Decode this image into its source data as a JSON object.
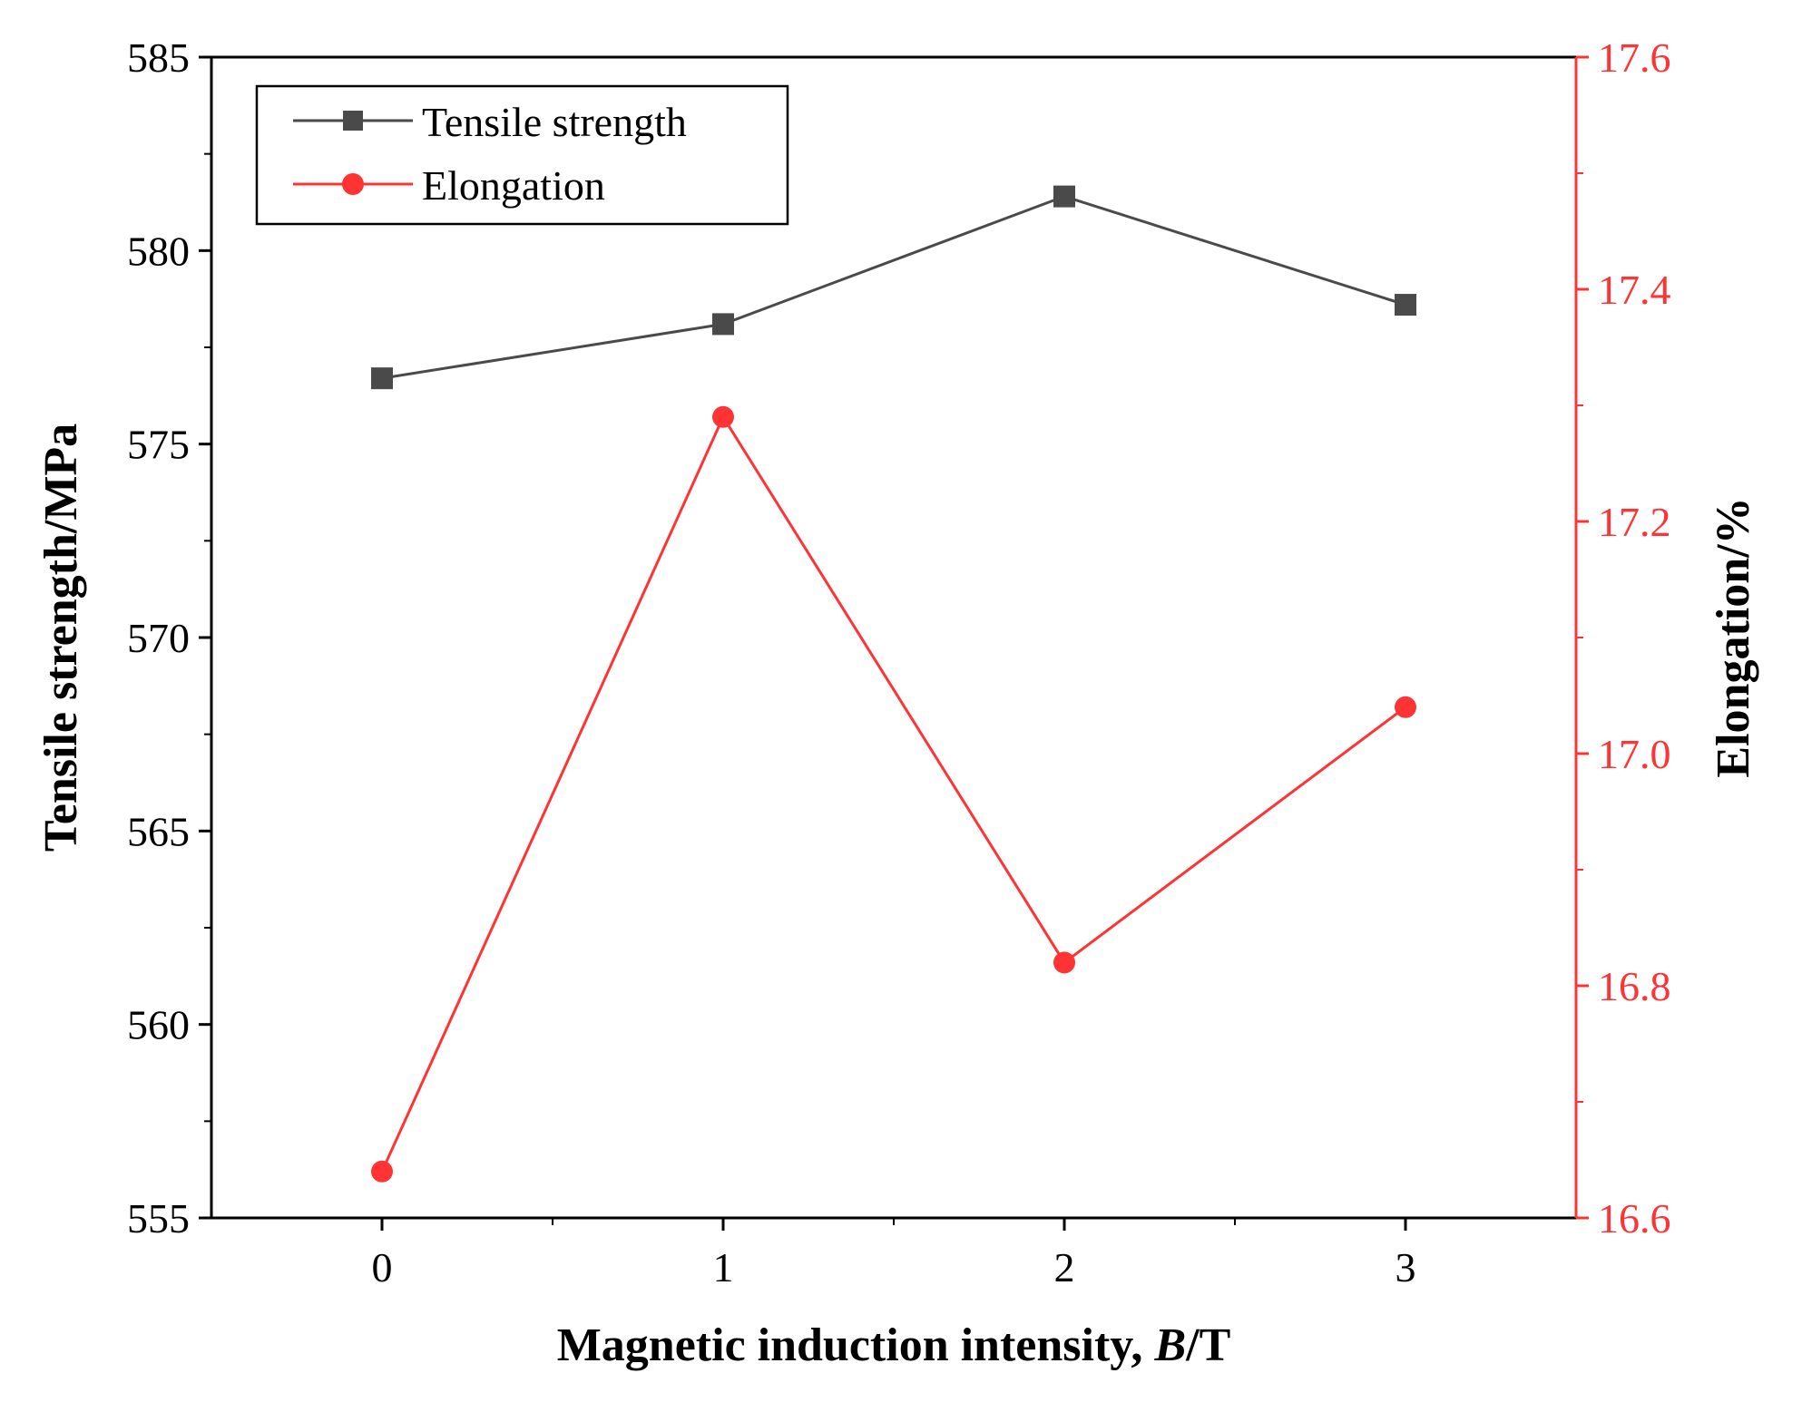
{
  "chart_data": {
    "type": "line",
    "title": "",
    "x": [
      0,
      1,
      2,
      3
    ],
    "x_ticks": [
      "0",
      "1",
      "2",
      "3"
    ],
    "xlim": [
      -0.5,
      3.5
    ],
    "xlabel_prefix": "Magnetic induction intensity, ",
    "xlabel_var": "B",
    "xlabel_suffix": "/T",
    "y_left": {
      "label": "Tensile strength/MPa",
      "lim": [
        555,
        585
      ],
      "ticks": [
        "555",
        "560",
        "565",
        "570",
        "575",
        "580",
        "585"
      ],
      "color": "#000000"
    },
    "y_right": {
      "label": "Elongation/%",
      "lim": [
        16.6,
        17.6
      ],
      "ticks": [
        "16.6",
        "16.8",
        "17.0",
        "17.2",
        "17.4",
        "17.6"
      ],
      "color": "#ff3333"
    },
    "series": [
      {
        "name": "Tensile strength",
        "axis": "left",
        "marker": "square",
        "color": "#4a4a4a",
        "values": [
          576.7,
          578.1,
          581.4,
          578.6
        ]
      },
      {
        "name": "Elongation",
        "axis": "right",
        "marker": "circle",
        "color": "#ff3333",
        "values": [
          16.64,
          17.29,
          16.82,
          17.04
        ]
      }
    ],
    "legend": "top-left",
    "grid": false
  }
}
